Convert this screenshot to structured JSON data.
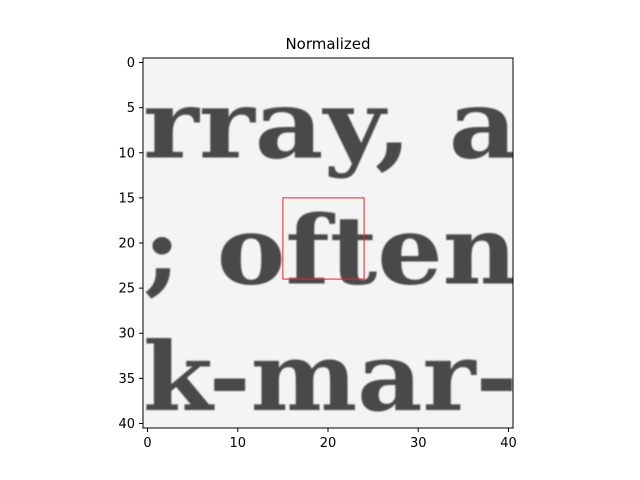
{
  "chart_data": {
    "type": "heatmap",
    "title": "Normalized",
    "xlabel": "",
    "ylabel": "",
    "xlim": [
      -0.5,
      40.5
    ],
    "ylim": [
      40.5,
      -0.5
    ],
    "x_ticks": [
      0,
      10,
      20,
      30,
      40
    ],
    "y_ticks": [
      0,
      5,
      10,
      15,
      20,
      25,
      30,
      35,
      40
    ],
    "grid": false,
    "colormap": "gray",
    "image_text_lines": [
      {
        "text": "rray, a",
        "baseline_row": 10.5,
        "x_start": -0.5
      },
      {
        "text": "; often",
        "baseline_row": 24.5,
        "x_start": -0.5
      },
      {
        "text": "k-mar-",
        "baseline_row": 38.5,
        "x_start": -0.5
      }
    ],
    "highlight_box": {
      "x0": 15,
      "y0": 15,
      "x1": 24,
      "y1": 24,
      "color": "#e8222a"
    }
  }
}
